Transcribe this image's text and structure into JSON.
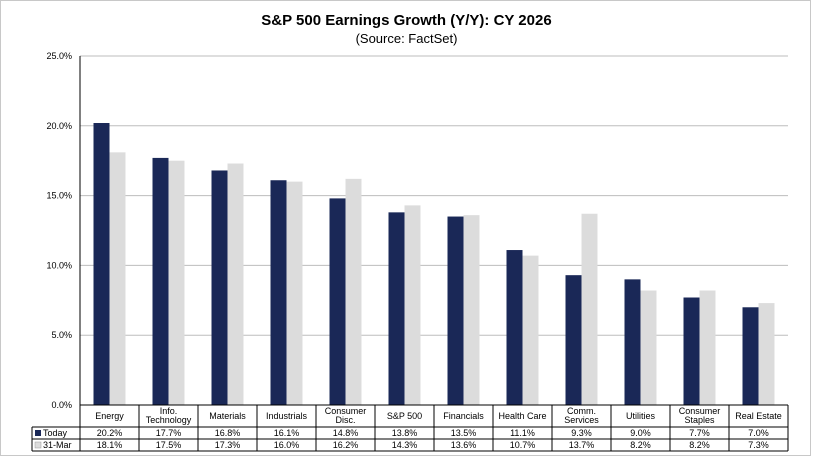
{
  "chart_data": {
    "type": "bar",
    "title": "S&P 500 Earnings Growth (Y/Y): CY 2026",
    "subtitle": "(Source: FactSet)",
    "categories": [
      [
        "Energy"
      ],
      [
        "Info.",
        "Technology"
      ],
      [
        "Materials"
      ],
      [
        "Industrials"
      ],
      [
        "Consumer",
        "Disc."
      ],
      [
        "S&P 500"
      ],
      [
        "Financials"
      ],
      [
        "Health Care"
      ],
      [
        "Comm.",
        "Services"
      ],
      [
        "Utilities"
      ],
      [
        "Consumer",
        "Staples"
      ],
      [
        "Real Estate"
      ]
    ],
    "series": [
      {
        "name": "Today",
        "color": "#1a2857",
        "values": [
          20.2,
          17.7,
          16.8,
          16.1,
          14.8,
          13.8,
          13.5,
          11.1,
          9.3,
          9.0,
          7.7,
          7.0
        ],
        "labels": [
          "20.2%",
          "17.7%",
          "16.8%",
          "16.1%",
          "14.8%",
          "13.8%",
          "13.5%",
          "11.1%",
          "9.3%",
          "9.0%",
          "7.7%",
          "7.0%"
        ]
      },
      {
        "name": "31-Mar",
        "color": "#dcdcdc",
        "values": [
          18.1,
          17.5,
          17.3,
          16.0,
          16.2,
          14.3,
          13.6,
          10.7,
          13.7,
          8.2,
          8.2,
          7.3
        ],
        "labels": [
          "18.1%",
          "17.5%",
          "17.3%",
          "16.0%",
          "16.2%",
          "14.3%",
          "13.6%",
          "10.7%",
          "13.7%",
          "8.2%",
          "8.2%",
          "7.3%"
        ]
      }
    ],
    "ylim": [
      0,
      25
    ],
    "yticks": [
      0,
      5,
      10,
      15,
      20,
      25
    ],
    "ytick_labels": [
      "0.0%",
      "5.0%",
      "10.0%",
      "15.0%",
      "20.0%",
      "25.0%"
    ],
    "grid": true,
    "legend": "data-table"
  }
}
